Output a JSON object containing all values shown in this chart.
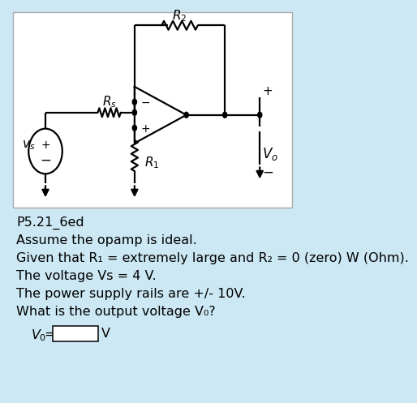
{
  "bg_color": "#cce8f4",
  "circuit_bg": "#ffffff",
  "title_text": "P5.21_6ed",
  "line1": "Assume the opamp is ideal.",
  "line2": "Given that R₁ = extremely large and R₂ = 0 (zero) W (Ohm).",
  "line3": "The voltage Vs = 4 V.",
  "line4": "The power supply rails are +/- 10V.",
  "line5": "What is the output voltage V₀?",
  "text_color": "#000000"
}
